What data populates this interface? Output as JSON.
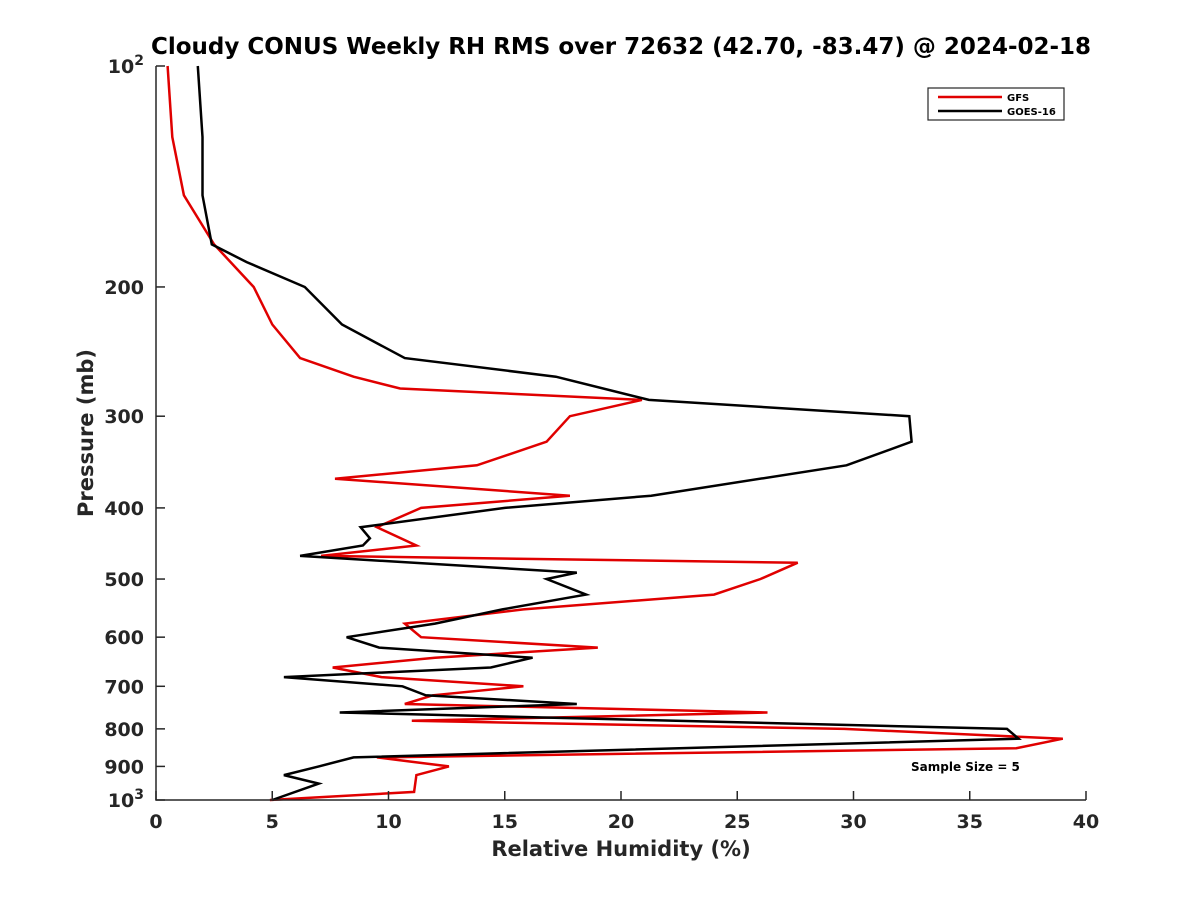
{
  "chart_data": {
    "type": "line",
    "title": "Cloudy CONUS Weekly RH RMS over 72632 (42.70, -83.47) @ 2024-02-18",
    "xlabel": "Relative Humidity (%)",
    "ylabel": "Pressure (mb)",
    "xlim": [
      0,
      40
    ],
    "ylim": [
      100,
      1000
    ],
    "yscale": "log",
    "y_reversed": true,
    "grid": false,
    "legend_placement": "top-right",
    "x_ticks": [
      0,
      5,
      10,
      15,
      20,
      25,
      30,
      35,
      40
    ],
    "y_ticks": [
      {
        "value": 100,
        "label": "10",
        "exp": "2"
      },
      {
        "value": 200,
        "label": "200"
      },
      {
        "value": 300,
        "label": "300"
      },
      {
        "value": 400,
        "label": "400"
      },
      {
        "value": 500,
        "label": "500"
      },
      {
        "value": 600,
        "label": "600"
      },
      {
        "value": 700,
        "label": "700"
      },
      {
        "value": 800,
        "label": "800"
      },
      {
        "value": 900,
        "label": "900"
      },
      {
        "value": 1000,
        "label": "10",
        "exp": "3"
      }
    ],
    "series": [
      {
        "name": "GFS",
        "color": "#e00000",
        "points": [
          [
            0.5,
            100
          ],
          [
            0.7,
            125
          ],
          [
            1.2,
            150
          ],
          [
            2.5,
            175
          ],
          [
            4.2,
            200
          ],
          [
            5.0,
            225
          ],
          [
            6.2,
            250
          ],
          [
            8.5,
            265
          ],
          [
            10.5,
            275
          ],
          [
            20.9,
            285
          ],
          [
            17.8,
            300
          ],
          [
            16.8,
            325
          ],
          [
            13.8,
            350
          ],
          [
            7.7,
            365
          ],
          [
            17.8,
            385
          ],
          [
            11.4,
            400
          ],
          [
            9.5,
            425
          ],
          [
            11.2,
            450
          ],
          [
            7.1,
            465
          ],
          [
            27.6,
            475
          ],
          [
            26.0,
            500
          ],
          [
            24.0,
            525
          ],
          [
            15.8,
            550
          ],
          [
            10.7,
            575
          ],
          [
            11.4,
            600
          ],
          [
            19.0,
            620
          ],
          [
            12.0,
            640
          ],
          [
            7.6,
            660
          ],
          [
            9.7,
            680
          ],
          [
            15.8,
            700
          ],
          [
            11.9,
            720
          ],
          [
            10.7,
            740
          ],
          [
            26.3,
            760
          ],
          [
            11.0,
            780
          ],
          [
            29.6,
            800
          ],
          [
            39.0,
            825
          ],
          [
            37.0,
            850
          ],
          [
            9.5,
            875
          ],
          [
            12.6,
            900
          ],
          [
            11.2,
            925
          ],
          [
            11.1,
            975
          ],
          [
            4.9,
            1000
          ]
        ]
      },
      {
        "name": "GOES-16",
        "color": "#000000",
        "points": [
          [
            1.8,
            100
          ],
          [
            2.0,
            125
          ],
          [
            2.0,
            150
          ],
          [
            2.4,
            175
          ],
          [
            3.9,
            185
          ],
          [
            6.4,
            200
          ],
          [
            8.0,
            225
          ],
          [
            10.7,
            250
          ],
          [
            17.2,
            265
          ],
          [
            21.2,
            285
          ],
          [
            32.4,
            300
          ],
          [
            32.5,
            325
          ],
          [
            29.7,
            350
          ],
          [
            21.3,
            385
          ],
          [
            15.0,
            400
          ],
          [
            8.8,
            425
          ],
          [
            9.2,
            440
          ],
          [
            8.9,
            450
          ],
          [
            6.2,
            465
          ],
          [
            18.1,
            490
          ],
          [
            16.8,
            500
          ],
          [
            18.5,
            525
          ],
          [
            14.9,
            550
          ],
          [
            12.0,
            575
          ],
          [
            8.2,
            600
          ],
          [
            9.6,
            620
          ],
          [
            16.2,
            640
          ],
          [
            14.4,
            660
          ],
          [
            5.5,
            680
          ],
          [
            10.6,
            700
          ],
          [
            11.6,
            720
          ],
          [
            18.1,
            740
          ],
          [
            7.9,
            760
          ],
          [
            36.6,
            800
          ],
          [
            37.1,
            825
          ],
          [
            8.5,
            875
          ],
          [
            7.0,
            900
          ],
          [
            5.5,
            925
          ],
          [
            7.0,
            950
          ],
          [
            5.0,
            1000
          ]
        ]
      }
    ],
    "annotation": "Sample Size = 5"
  }
}
